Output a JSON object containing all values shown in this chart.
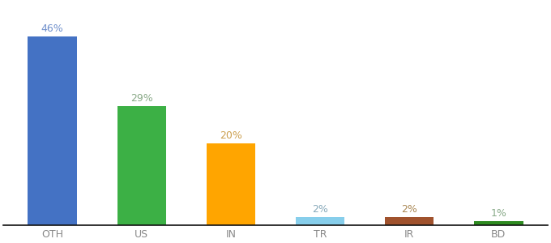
{
  "categories": [
    "OTH",
    "US",
    "IN",
    "TR",
    "IR",
    "BD"
  ],
  "values": [
    46,
    29,
    20,
    2,
    2,
    1
  ],
  "bar_colors": [
    "#4472C4",
    "#3CB045",
    "#FFA500",
    "#87CEEB",
    "#A0522D",
    "#2E8B20"
  ],
  "label_colors": [
    "#7090CC",
    "#8AAA88",
    "#CCA050",
    "#88AABB",
    "#AA8855",
    "#88AA88"
  ],
  "tick_color": "#888888",
  "background_color": "#ffffff",
  "ylim": [
    0,
    54
  ],
  "bar_width": 0.55,
  "figsize": [
    6.8,
    3.0
  ],
  "dpi": 100
}
